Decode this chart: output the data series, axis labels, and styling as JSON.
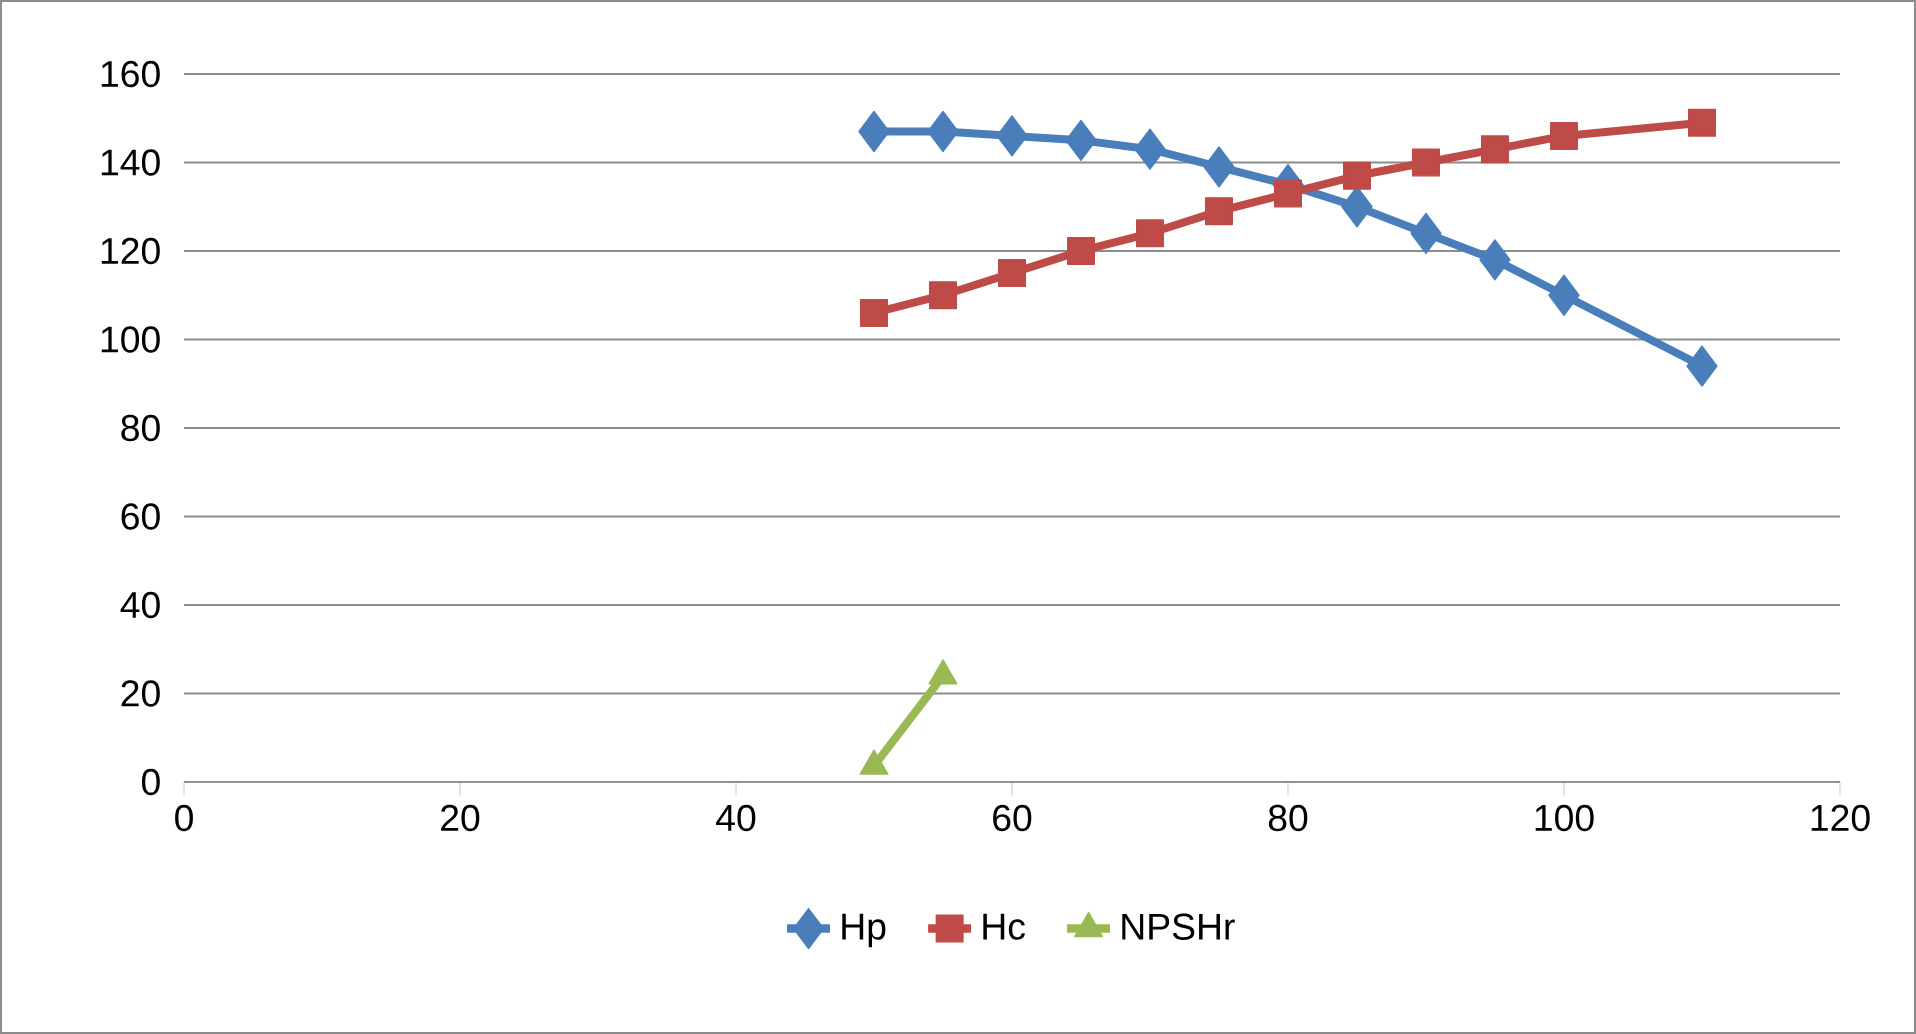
{
  "chart_data": {
    "type": "line",
    "xlim": [
      0,
      120
    ],
    "xticks": [
      0,
      20,
      40,
      60,
      80,
      100,
      120
    ],
    "ylim": [
      0,
      160
    ],
    "yticks": [
      0,
      20,
      40,
      60,
      80,
      100,
      120,
      140,
      160
    ],
    "grid": "y",
    "legend": "bottom",
    "series": [
      {
        "name": "Hp",
        "color": "#4a7ebb",
        "marker": "diamond",
        "x": [
          50,
          55,
          60,
          65,
          70,
          75,
          80,
          85,
          90,
          95,
          100,
          110
        ],
        "values": [
          147,
          147,
          146,
          145,
          143,
          139,
          135,
          130,
          124,
          118,
          110,
          94
        ]
      },
      {
        "name": "Hc",
        "color": "#be4b48",
        "marker": "square",
        "x": [
          50,
          55,
          60,
          65,
          70,
          75,
          80,
          85,
          90,
          95,
          100,
          110
        ],
        "values": [
          106,
          110,
          115,
          120,
          124,
          129,
          133,
          137,
          140,
          143,
          146,
          149
        ]
      },
      {
        "name": "NPSHr",
        "color": "#98b954",
        "marker": "triangle",
        "x": [
          50,
          55
        ],
        "values": [
          3.6,
          24
        ]
      }
    ]
  }
}
